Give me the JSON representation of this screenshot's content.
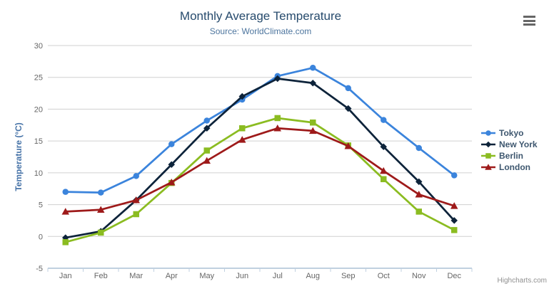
{
  "chart_data": {
    "type": "line",
    "title": "Monthly Average Temperature",
    "subtitle": "Source: WorldClimate.com",
    "categories": [
      "Jan",
      "Feb",
      "Mar",
      "Apr",
      "May",
      "Jun",
      "Jul",
      "Aug",
      "Sep",
      "Oct",
      "Nov",
      "Dec"
    ],
    "xlabel": "",
    "ylabel": "Temperature (°C)",
    "ylim": [
      -5,
      30
    ],
    "yticks": [
      -5,
      0,
      5,
      10,
      15,
      20,
      25,
      30
    ],
    "grid": true,
    "legend_position": "right",
    "series": [
      {
        "name": "Tokyo",
        "marker": "circle",
        "color": "#3b84dc",
        "values": [
          7.0,
          6.9,
          9.5,
          14.5,
          18.2,
          21.5,
          25.2,
          26.5,
          23.3,
          18.3,
          13.9,
          9.6
        ]
      },
      {
        "name": "New York",
        "marker": "diamond",
        "color": "#0d233a",
        "values": [
          -0.2,
          0.8,
          5.7,
          11.3,
          17.0,
          22.0,
          24.8,
          24.1,
          20.1,
          14.1,
          8.6,
          2.5
        ]
      },
      {
        "name": "Berlin",
        "marker": "square",
        "color": "#8bbc21",
        "values": [
          -0.9,
          0.6,
          3.5,
          8.4,
          13.5,
          17.0,
          18.6,
          17.9,
          14.3,
          9.0,
          3.9,
          1.0
        ]
      },
      {
        "name": "London",
        "marker": "triangle",
        "color": "#9e1a1a",
        "values": [
          3.9,
          4.2,
          5.7,
          8.5,
          11.9,
          15.2,
          17.0,
          16.6,
          14.2,
          10.3,
          6.6,
          4.8
        ]
      }
    ]
  },
  "palette": {
    "title_color": "#274b6d",
    "subtitle_color": "#4d759e",
    "axis_title_color": "#4572a7",
    "tick_label_color": "#666666",
    "legend_text_color": "#3e576f",
    "grid_color": "#d0d0d0",
    "axis_line_color": "#c0d0e0",
    "credits_color": "#909090",
    "menu_icon_color": "#666666"
  },
  "credits": {
    "label": "Highcharts.com"
  }
}
